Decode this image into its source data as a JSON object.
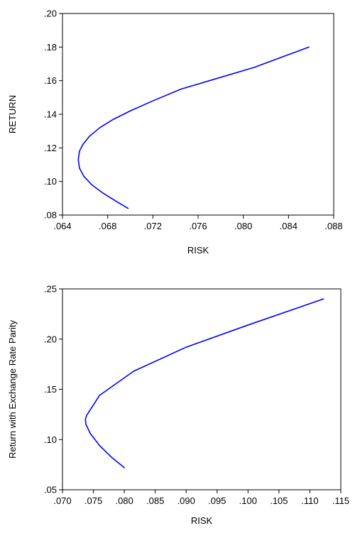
{
  "chart_data": [
    {
      "type": "line",
      "title": "",
      "xlabel": "RISK",
      "ylabel": "RETURN",
      "xlim": [
        0.064,
        0.088
      ],
      "ylim": [
        0.08,
        0.2
      ],
      "xticks": [
        0.064,
        0.068,
        0.072,
        0.076,
        0.08,
        0.084,
        0.088
      ],
      "xtick_labels": [
        ".064",
        ".068",
        ".072",
        ".076",
        ".080",
        ".084",
        ".088"
      ],
      "yticks": [
        0.08,
        0.1,
        0.12,
        0.14,
        0.16,
        0.18,
        0.2
      ],
      "ytick_labels": [
        ".08",
        ".10",
        ".12",
        ".14",
        ".16",
        ".18",
        ".20"
      ],
      "grid": false,
      "line_color": "#0000ff",
      "series": [
        {
          "x": [
            0.0698,
            0.0688,
            0.0676,
            0.0666,
            0.0659,
            0.0655,
            0.0654,
            0.0655,
            0.0658,
            0.0664,
            0.0673,
            0.0685,
            0.07,
            0.072,
            0.0745,
            0.0775,
            0.081,
            0.0858
          ],
          "y": [
            0.084,
            0.088,
            0.093,
            0.098,
            0.103,
            0.108,
            0.113,
            0.118,
            0.122,
            0.127,
            0.132,
            0.137,
            0.142,
            0.148,
            0.155,
            0.161,
            0.168,
            0.18
          ]
        }
      ]
    },
    {
      "type": "line",
      "title": "",
      "xlabel": "RISK",
      "ylabel": "Return with Exchange Rate Parity",
      "xlim": [
        0.07,
        0.115
      ],
      "ylim": [
        0.05,
        0.25
      ],
      "xticks": [
        0.07,
        0.075,
        0.08,
        0.085,
        0.09,
        0.095,
        0.1,
        0.105,
        0.11,
        0.115
      ],
      "xtick_labels": [
        ".070",
        ".075",
        ".080",
        ".085",
        ".090",
        ".095",
        ".100",
        ".105",
        ".110",
        ".115"
      ],
      "yticks": [
        0.05,
        0.1,
        0.15,
        0.2,
        0.25
      ],
      "ytick_labels": [
        ".05",
        ".10",
        ".15",
        ".20",
        ".25"
      ],
      "grid": false,
      "line_color": "#0000ff",
      "series": [
        {
          "x": [
            0.08,
            0.078,
            0.076,
            0.0745,
            0.0738,
            0.0737,
            0.0739,
            0.076,
            0.0815,
            0.09,
            0.1,
            0.1122
          ],
          "y": [
            0.072,
            0.082,
            0.094,
            0.106,
            0.115,
            0.12,
            0.124,
            0.144,
            0.168,
            0.192,
            0.214,
            0.24
          ]
        }
      ]
    }
  ]
}
